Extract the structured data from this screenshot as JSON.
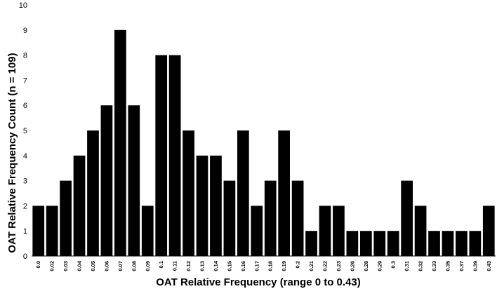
{
  "chart_data": {
    "type": "bar",
    "title": "",
    "xlabel": "OAT Relative Frequency (range 0 to 0.43)",
    "ylabel": "OAT Relative Frequency Count (n = 109)",
    "ylim": [
      0,
      10
    ],
    "yticks": [
      0,
      1,
      2,
      3,
      4,
      5,
      6,
      7,
      8,
      9,
      10
    ],
    "categories": [
      "0.0",
      "0.02",
      "0.03",
      "0.04",
      "0.05",
      "0.06",
      "0.07",
      "0.08",
      "0.09",
      "0.1",
      "0.11",
      "0.12",
      "0.13",
      "0.14",
      "0.15",
      "0.16",
      "0.17",
      "0.18",
      "0.19",
      "0.2",
      "0.21",
      "0.22",
      "0.23",
      "0.26",
      "0.28",
      "0.29",
      "0.3",
      "0.31",
      "0.32",
      "0.33",
      "0.35",
      "0.37",
      "0.39",
      "0.43"
    ],
    "values": [
      2,
      2,
      3,
      4,
      5,
      6,
      9,
      6,
      2,
      8,
      8,
      5,
      4,
      4,
      3,
      5,
      2,
      3,
      5,
      3,
      1,
      2,
      2,
      1,
      1,
      1,
      1,
      3,
      2,
      1,
      1,
      1,
      1,
      2
    ],
    "grid": false,
    "legend": "none",
    "bar_color": "#000000"
  }
}
